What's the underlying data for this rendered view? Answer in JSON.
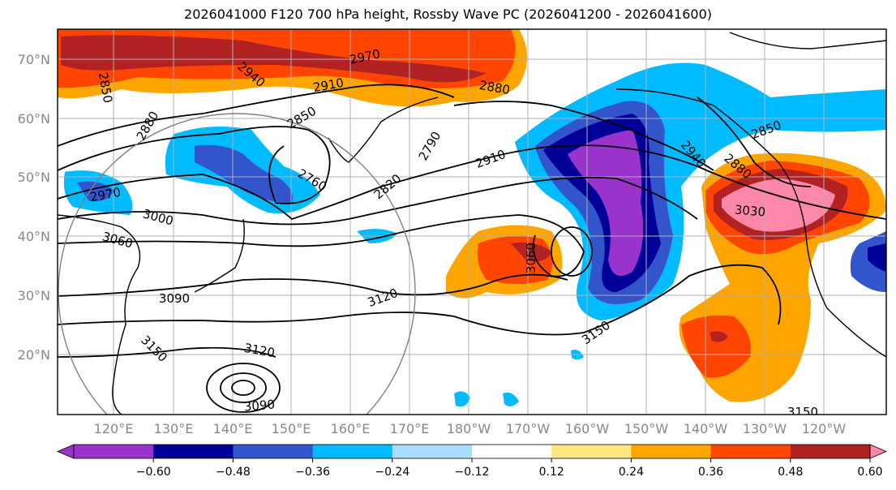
{
  "title": "2026041000 F120 700 hPa height, Rossby Wave PC (2026041200 - 2026041600)",
  "lat_labels": [
    "70°N",
    "60°N",
    "50°N",
    "40°N",
    "30°N",
    "20°N"
  ],
  "lon_labels": [
    "120°E",
    "130°E",
    "140°E",
    "150°E",
    "160°E",
    "170°E",
    "180°W",
    "170°W",
    "160°W",
    "150°W",
    "140°W",
    "130°W",
    "120°W"
  ],
  "contour_labels": [
    "2970",
    "2940",
    "2910",
    "2880",
    "2850",
    "2850",
    "2880",
    "2790",
    "2760",
    "2820",
    "2910",
    "2940",
    "2880",
    "2850",
    "3030",
    "2970",
    "3000",
    "3060",
    "3090",
    "3060",
    "3120",
    "3150",
    "3120",
    "3090",
    "3150",
    "3150"
  ],
  "colorbar": {
    "colors": [
      "#9933cc",
      "#000099",
      "#3355cc",
      "#00bbff",
      "#aaddff",
      "#ffffff",
      "#ffe680",
      "#ffa500",
      "#ff4500",
      "#b22222",
      "#ff88aa"
    ],
    "tick_labels": [
      "−0.60",
      "−0.48",
      "−0.36",
      "−0.24",
      "−0.12",
      "0.12",
      "0.24",
      "0.36",
      "0.48",
      "0.60"
    ]
  },
  "palette": {
    "purple": "#9933cc",
    "navy": "#000099",
    "blue": "#3355cc",
    "sky": "#00bbff",
    "light_sky": "#aaddff",
    "yellow": "#ffe680",
    "orange": "#ffa500",
    "red_orange": "#ff4500",
    "dark_red": "#b22222",
    "pink": "#ff88aa"
  }
}
